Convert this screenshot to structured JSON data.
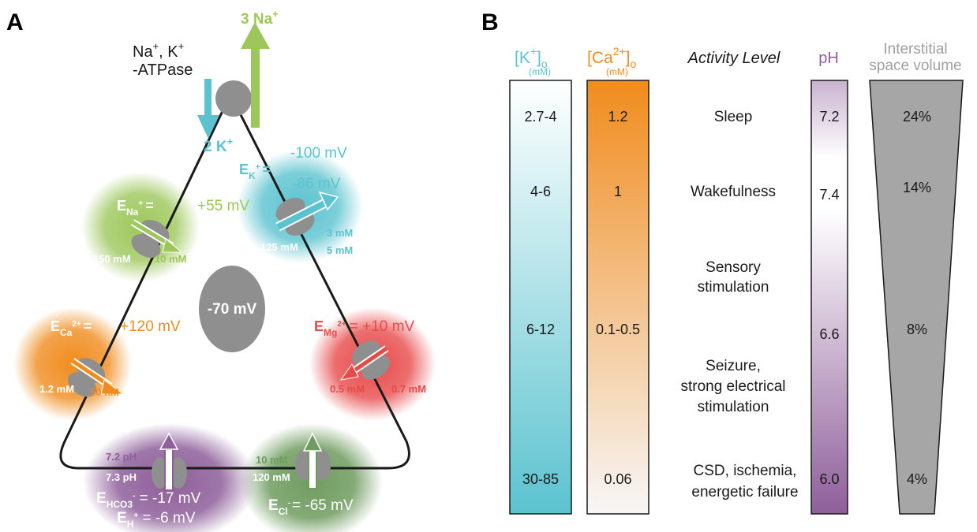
{
  "panel_a": {
    "letter": "A",
    "pump": {
      "label_line1": "Na",
      "label_plus1": "+",
      "label_mid": ", K",
      "label_plus2": "+",
      "label_line2": "-ATPase",
      "out_label": "3 Na",
      "out_sup": "+",
      "in_label": "2 K",
      "in_sup": "+"
    },
    "membrane_potential": "-70 mV",
    "na": {
      "E": "E",
      "sub": "Na",
      "sup": "+",
      "eq": "=",
      "value": "+55 mV",
      "inside": "150 mM",
      "outside": "10 mM"
    },
    "k": {
      "top_value": "-100 mV",
      "E": "E",
      "sub": "K",
      "sup": "+",
      "eq": "=",
      "value": "-86 mV",
      "inside": "125 mM",
      "out1": "3 mM",
      "out2": "5 mM"
    },
    "ca": {
      "E": "E",
      "sub": "Ca",
      "sup": "2+",
      "eq": "=",
      "value": "+120 mV",
      "outside": "1.2 mM",
      "inside": "50 nM"
    },
    "mg": {
      "E": "E",
      "sub": "Mg",
      "sup": "2+",
      "eq": "= +10 mV",
      "inside": "0.5 mM",
      "outside": "0.7 mM"
    },
    "hco3": {
      "ph_out": "7.2 pH",
      "ph_in": "7.3 pH",
      "E": "E",
      "sub": "HCO3",
      "sup": "-",
      "eq": " = -17 mV",
      "E2": "E",
      "sub2": "H",
      "sup2": "+",
      "eq2": " = -6 mV"
    },
    "cl": {
      "out": "10 mM",
      "in": "120 mM",
      "E": "E",
      "sub": "Cl",
      "sup": "-",
      "eq": "= -65 mV"
    }
  },
  "panel_b": {
    "letter": "B",
    "headers": {
      "k": "[K",
      "k_sup": "+",
      "k_close": "]",
      "k_sub": "o",
      "k_unit": "(mM)",
      "ca": "[Ca",
      "ca_sup": "2+",
      "ca_close": "]",
      "ca_sub": "o",
      "ca_unit": "(mM)",
      "activity": "Activity Level",
      "ph": "pH",
      "isv_line1": "Interstitial",
      "isv_line2": "space volume"
    },
    "rows": [
      {
        "k": "2.7-4",
        "ca": "1.2",
        "activity": [
          "Sleep"
        ],
        "ph": "7.2",
        "isv": "24%"
      },
      {
        "k": "4-6",
        "ca": "1",
        "activity": [
          "Wakefulness"
        ],
        "ph": "7.4",
        "isv": "14%"
      },
      {
        "k": "",
        "ca": "",
        "activity": [
          "Sensory",
          "stimulation"
        ],
        "ph": "",
        "isv": ""
      },
      {
        "k": "6-12",
        "ca": "0.1-0.5",
        "activity": [],
        "ph": "6.6",
        "isv": "8%"
      },
      {
        "k": "",
        "ca": "",
        "activity": [
          "Seizure,",
          "strong electrical",
          "stimulation"
        ],
        "ph": "",
        "isv": ""
      },
      {
        "k": "30-85",
        "ca": "0.06",
        "activity": [
          "CSD, ischemia,",
          "energetic failure"
        ],
        "ph": "6.0",
        "isv": "4%"
      }
    ]
  },
  "colors": {
    "na": "#9dc75b",
    "k": "#5bc3cf",
    "ca": "#f08c1e",
    "mg": "#e84a4a",
    "hco3": "#8e5f9a",
    "cl": "#6f9c5f",
    "channel": "#8f8f8f",
    "line": "#1a1a1a"
  }
}
